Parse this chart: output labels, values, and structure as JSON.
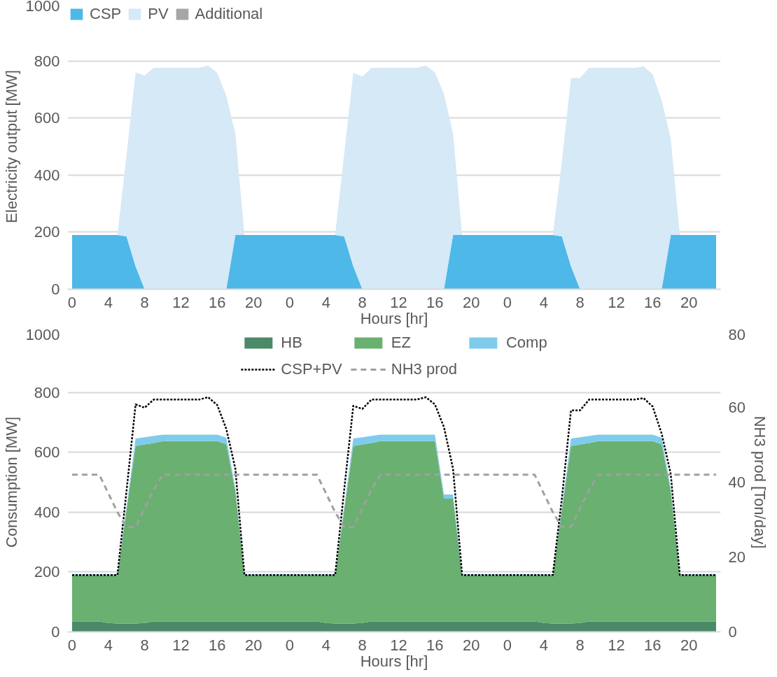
{
  "chart_data": [
    {
      "type": "area",
      "stacked": true,
      "xlabel": "Hours [hr]",
      "ylabel": "Electricity output [MW]",
      "ylim": [
        0,
        1000
      ],
      "yticks": [
        0,
        200,
        400,
        600,
        800,
        1000
      ],
      "grid": "y",
      "legend": "top left",
      "categories": [
        "0",
        null,
        null,
        null,
        "4",
        null,
        null,
        null,
        "8",
        null,
        null,
        null,
        "12",
        null,
        null,
        null,
        "16",
        null,
        null,
        null,
        "20",
        null,
        null,
        null,
        "0",
        null,
        null,
        null,
        "4",
        null,
        null,
        null,
        "8",
        null,
        null,
        null,
        "12",
        null,
        null,
        null,
        "16",
        null,
        null,
        null,
        "20",
        null,
        null,
        null,
        "0",
        null,
        null,
        null,
        "4",
        null,
        null,
        null,
        "8",
        null,
        null,
        null,
        "12",
        null,
        null,
        null,
        "16",
        null,
        null,
        null,
        "20",
        null,
        null,
        null
      ],
      "series": [
        {
          "name": "CSP",
          "color": "#4eb8e8",
          "values": [
            190,
            190,
            190,
            190,
            190,
            190,
            185,
            80,
            0,
            0,
            0,
            0,
            0,
            0,
            0,
            0,
            0,
            0,
            190,
            190,
            190,
            190,
            190,
            190,
            190,
            190,
            190,
            190,
            190,
            190,
            185,
            80,
            0,
            0,
            0,
            0,
            0,
            0,
            0,
            0,
            0,
            0,
            190,
            190,
            190,
            190,
            190,
            190,
            190,
            190,
            190,
            190,
            190,
            190,
            185,
            80,
            0,
            0,
            0,
            0,
            0,
            0,
            0,
            0,
            0,
            0,
            190,
            190,
            190,
            190,
            190,
            190
          ]
        },
        {
          "name": "PV",
          "color": "#d5e9f7",
          "values": [
            0,
            0,
            0,
            0,
            0,
            0,
            285,
            680,
            749,
            776,
            776,
            776,
            776,
            776,
            776,
            784,
            758,
            678,
            355,
            0,
            0,
            0,
            0,
            0,
            0,
            0,
            0,
            0,
            0,
            0,
            290,
            678,
            745,
            776,
            776,
            776,
            776,
            776,
            776,
            784,
            760,
            684,
            355,
            0,
            0,
            0,
            0,
            0,
            0,
            0,
            0,
            0,
            0,
            0,
            262,
            660,
            740,
            776,
            776,
            776,
            776,
            776,
            776,
            781,
            753,
            662,
            337,
            0,
            0,
            0,
            0,
            0
          ]
        },
        {
          "name": "Additional",
          "color": "#a6a6a6",
          "values": [
            null,
            null,
            null,
            null,
            null,
            null,
            null,
            null,
            null,
            null,
            null,
            null,
            null,
            null,
            null,
            null,
            null,
            null,
            null,
            null,
            null,
            null,
            null,
            null,
            null,
            null,
            null,
            null,
            null,
            null,
            null,
            null,
            null,
            null,
            null,
            null,
            null,
            null,
            null,
            null,
            null,
            null,
            null,
            null,
            null,
            null,
            null,
            null,
            null,
            null,
            null,
            null,
            null,
            null,
            null,
            null,
            null,
            null,
            null,
            null,
            null,
            null,
            null,
            null,
            null,
            null,
            null,
            null,
            null,
            null,
            null,
            null
          ]
        }
      ]
    },
    {
      "type": "area",
      "stacked": true,
      "xlabel": "Hours [hr]",
      "ylabel": "Consumption [MW]",
      "y2label": "NH3 prod [Ton/day]",
      "ylim": [
        0,
        1000
      ],
      "yticks": [
        0,
        200,
        400,
        600,
        800,
        1000
      ],
      "y2lim": [
        0,
        80
      ],
      "y2ticks": [
        0,
        20,
        40,
        60,
        80
      ],
      "grid": "y",
      "legend": "top",
      "categories": [
        "0",
        null,
        null,
        null,
        "4",
        null,
        null,
        null,
        "8",
        null,
        null,
        null,
        "12",
        null,
        null,
        null,
        "16",
        null,
        null,
        null,
        "20",
        null,
        null,
        null,
        "0",
        null,
        null,
        null,
        "4",
        null,
        null,
        null,
        "8",
        null,
        null,
        null,
        "12",
        null,
        null,
        null,
        "16",
        null,
        null,
        null,
        "20",
        null,
        null,
        null,
        "0",
        null,
        null,
        null,
        "4",
        null,
        null,
        null,
        "8",
        null,
        null,
        null,
        "12",
        null,
        null,
        null,
        "16",
        null,
        null,
        null,
        "20",
        null,
        null,
        null
      ],
      "series": [
        {
          "name": "HB",
          "color": "#4a8a68",
          "values": [
            35,
            35,
            35,
            35,
            30,
            28,
            28,
            28,
            30,
            35,
            35,
            35,
            35,
            35,
            35,
            35,
            35,
            35,
            35,
            35,
            35,
            35,
            35,
            35,
            35,
            35,
            35,
            35,
            30,
            28,
            28,
            28,
            30,
            35,
            35,
            35,
            35,
            35,
            35,
            35,
            35,
            35,
            35,
            35,
            35,
            35,
            35,
            35,
            35,
            35,
            35,
            35,
            30,
            28,
            28,
            28,
            30,
            35,
            35,
            35,
            35,
            35,
            35,
            35,
            35,
            35,
            35,
            35,
            35,
            35,
            35,
            35
          ]
        },
        {
          "name": "EZ",
          "color": "#6ab070",
          "values": [
            153,
            153,
            153,
            153,
            158,
            160,
            380,
            593,
            596,
            596,
            602,
            602,
            602,
            602,
            602,
            602,
            602,
            592,
            435,
            153,
            153,
            153,
            153,
            153,
            153,
            153,
            153,
            153,
            158,
            160,
            380,
            593,
            596,
            596,
            602,
            602,
            602,
            602,
            602,
            602,
            602,
            410,
            410,
            153,
            153,
            153,
            153,
            153,
            153,
            153,
            153,
            153,
            158,
            160,
            380,
            593,
            596,
            596,
            602,
            602,
            602,
            602,
            602,
            602,
            602,
            592,
            435,
            153,
            153,
            153,
            153,
            153
          ]
        },
        {
          "name": "Comp",
          "color": "#7fcbec",
          "values": [
            4,
            4,
            4,
            4,
            4,
            4,
            10,
            25,
            24,
            24,
            22,
            22,
            22,
            22,
            22,
            22,
            22,
            22,
            10,
            4,
            4,
            4,
            4,
            4,
            4,
            4,
            4,
            4,
            4,
            4,
            10,
            25,
            24,
            24,
            22,
            22,
            22,
            22,
            22,
            22,
            22,
            14,
            14,
            4,
            4,
            4,
            4,
            4,
            4,
            4,
            4,
            4,
            4,
            4,
            10,
            25,
            24,
            24,
            22,
            22,
            22,
            22,
            22,
            22,
            22,
            22,
            10,
            4,
            4,
            4,
            4,
            4
          ]
        },
        {
          "name": "CSP+PV",
          "type": "line",
          "color": "#000000",
          "line_style": "dotted",
          "values": [
            190,
            190,
            190,
            190,
            190,
            190,
            470,
            760,
            749,
            776,
            776,
            776,
            776,
            776,
            776,
            784,
            758,
            678,
            545,
            190,
            190,
            190,
            190,
            190,
            190,
            190,
            190,
            190,
            190,
            190,
            475,
            755,
            745,
            776,
            776,
            776,
            776,
            776,
            776,
            784,
            760,
            684,
            545,
            190,
            190,
            190,
            190,
            190,
            190,
            190,
            190,
            190,
            190,
            190,
            447,
            740,
            740,
            776,
            776,
            776,
            776,
            776,
            776,
            781,
            753,
            662,
            527,
            190,
            190,
            190,
            190,
            190
          ]
        },
        {
          "name": "NH3 prod",
          "type": "line",
          "axis": "y2",
          "color": "#a0a0a0",
          "line_style": "dashed",
          "values": [
            42,
            42,
            42,
            42,
            37,
            32,
            28,
            28,
            33,
            38,
            42,
            42,
            42,
            42,
            42,
            42,
            42,
            42,
            42,
            42,
            42,
            42,
            42,
            42,
            42,
            42,
            42,
            42,
            37,
            32,
            28,
            28,
            33,
            38,
            42,
            42,
            42,
            42,
            42,
            42,
            42,
            42,
            42,
            42,
            42,
            42,
            42,
            42,
            42,
            42,
            42,
            42,
            37,
            32,
            28,
            28,
            33,
            38,
            42,
            42,
            42,
            42,
            42,
            42,
            42,
            42,
            42,
            42,
            42,
            42,
            42,
            42
          ]
        }
      ]
    }
  ]
}
